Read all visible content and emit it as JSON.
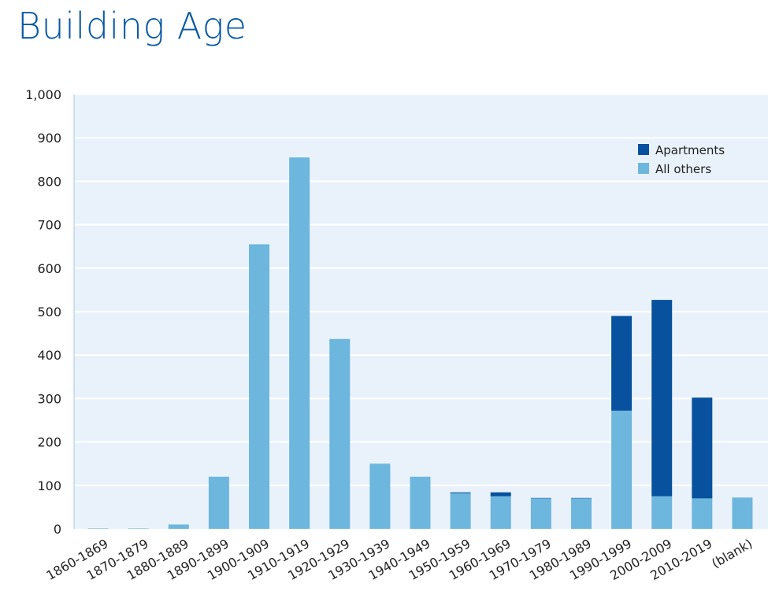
{
  "colors": {
    "apartments": "#07519e",
    "all_others": "#6db6de",
    "plot_bg": "#e9f2fb",
    "title": "#0b5ba5"
  },
  "chart_data": {
    "type": "bar",
    "stacked": true,
    "title": "Building Age",
    "xlabel": "",
    "ylabel": "",
    "ylim": [
      0,
      1000
    ],
    "yticks": [
      0,
      100,
      200,
      300,
      400,
      500,
      600,
      700,
      800,
      900,
      1000
    ],
    "ytick_labels": [
      "0",
      "100",
      "200",
      "300",
      "400",
      "500",
      "600",
      "700",
      "800",
      "900",
      "1,000"
    ],
    "grid": true,
    "legend_position": "top-right",
    "categories": [
      "1860-1869",
      "1870-1879",
      "1880-1889",
      "1890-1899",
      "1900-1909",
      "1910-1919",
      "1920-1929",
      "1930-1939",
      "1940-1949",
      "1950-1959",
      "1960-1969",
      "1970-1979",
      "1980-1989",
      "1990-1999",
      "2000-2009",
      "2010-2019",
      "(blank)"
    ],
    "series": [
      {
        "name": "All others",
        "values": [
          1,
          1,
          10,
          120,
          655,
          855,
          437,
          150,
          120,
          82,
          75,
          70,
          70,
          272,
          75,
          70,
          72
        ]
      },
      {
        "name": "Apartments",
        "values": [
          0,
          0,
          0,
          0,
          0,
          0,
          0,
          0,
          0,
          2,
          9,
          1,
          1,
          218,
          452,
          232,
          0
        ]
      }
    ]
  }
}
